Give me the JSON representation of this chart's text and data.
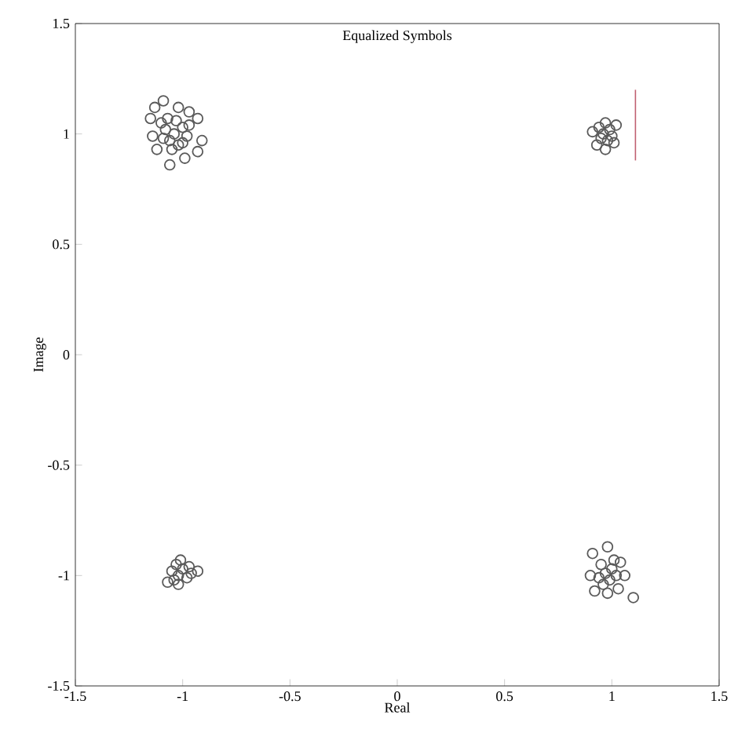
{
  "chart_data": {
    "type": "scatter",
    "title": "Equalized Symbols",
    "xlabel": "Real",
    "ylabel": "Image",
    "xlim": [
      -1.5,
      1.5
    ],
    "ylim": [
      -1.5,
      1.5
    ],
    "xticks": [
      -1.5,
      -1,
      -0.5,
      0,
      0.5,
      1,
      1.5
    ],
    "yticks": [
      -1.5,
      -1,
      -0.5,
      0,
      0.5,
      1,
      1.5
    ],
    "marker": "circle",
    "grid": false,
    "series": [
      {
        "color": "#5a5a5a",
        "x": [
          -1.13,
          -1.09,
          -1.02,
          -0.97,
          -0.93,
          -0.91,
          -0.93,
          -0.99,
          -1.06,
          -1.12,
          -1.14,
          -1.1,
          -1.15,
          -1.04,
          -1.0,
          -1.06,
          -1.02,
          -1.08,
          -0.98,
          -1.03,
          -1.07,
          -1.0,
          -1.05,
          -0.97,
          -1.09,
          0.91,
          0.93,
          1.02,
          0.97,
          0.96,
          0.99,
          0.94,
          0.98,
          1.0,
          0.95,
          0.97,
          1.01,
          -1.0,
          -1.03,
          -0.97,
          -1.02,
          -0.98,
          -1.05,
          -0.96,
          -1.01,
          -1.04,
          -0.93,
          -1.02,
          -1.07,
          0.98,
          0.91,
          1.04,
          1.06,
          1.03,
          0.98,
          0.92,
          1.1,
          0.9,
          0.97,
          0.95,
          1.0,
          0.99,
          0.94,
          1.01,
          0.96,
          1.02
        ],
        "values": [
          1.12,
          1.15,
          1.12,
          1.1,
          1.07,
          0.97,
          0.92,
          0.89,
          0.86,
          0.93,
          0.99,
          1.05,
          1.07,
          1.0,
          1.03,
          0.97,
          0.95,
          1.02,
          0.99,
          1.06,
          1.07,
          0.96,
          0.93,
          1.04,
          0.98,
          1.01,
          0.95,
          1.04,
          0.93,
          1.0,
          1.02,
          1.03,
          0.97,
          0.99,
          0.98,
          1.05,
          0.96,
          -0.97,
          -0.95,
          -0.96,
          -1.0,
          -1.01,
          -0.98,
          -0.99,
          -0.93,
          -1.02,
          -0.98,
          -1.04,
          -1.03,
          -0.87,
          -0.9,
          -0.94,
          -1.0,
          -1.06,
          -1.08,
          -1.07,
          -1.1,
          -1.0,
          -0.99,
          -0.95,
          -0.97,
          -1.02,
          -1.01,
          -0.93,
          -1.04,
          -1.0
        ]
      },
      {
        "type": "line",
        "color": "#c06070",
        "marker": "none",
        "x": [
          1.11,
          1.11
        ],
        "values": [
          1.2,
          0.88
        ]
      }
    ]
  }
}
